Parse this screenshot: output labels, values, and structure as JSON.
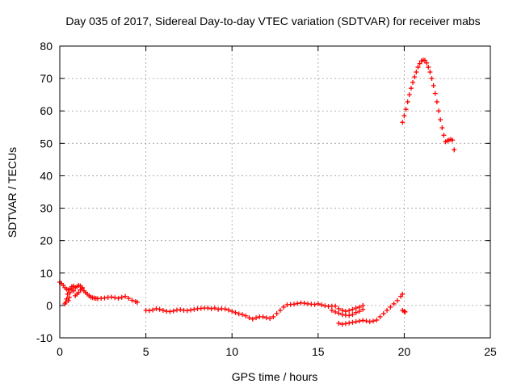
{
  "chart_data": {
    "type": "scatter",
    "title": "Day 035 of 2017, Sidereal Day-to-day VTEC variation (SDTVAR) for receiver mabs",
    "xlabel": "GPS time / hours",
    "ylabel": "SDTVAR / TECUs",
    "xlim": [
      0,
      25
    ],
    "ylim": [
      -10,
      80
    ],
    "xticks": [
      0,
      5,
      10,
      15,
      20,
      25
    ],
    "yticks": [
      -10,
      0,
      10,
      20,
      30,
      40,
      50,
      60,
      70,
      80
    ],
    "grid": true,
    "marker": "+",
    "color": "#ff0000",
    "series": [
      {
        "name": "mabs",
        "x": [
          0.0,
          0.1,
          0.2,
          0.3,
          0.4,
          0.5,
          0.6,
          0.7,
          0.8,
          0.9,
          1.0,
          1.1,
          1.2,
          1.3,
          1.4,
          1.5,
          1.6,
          1.7,
          1.8,
          1.9,
          2.0,
          2.1,
          2.2,
          2.4,
          2.6,
          2.8,
          3.0,
          3.2,
          3.4,
          3.6,
          3.8,
          4.0,
          4.2,
          4.4,
          4.5,
          0.3,
          0.35,
          0.4,
          0.45,
          0.5,
          0.55,
          0.6,
          0.7,
          0.8,
          0.9,
          1.0,
          1.1,
          1.2,
          1.3,
          5.0,
          5.2,
          5.4,
          5.6,
          5.8,
          6.0,
          6.2,
          6.4,
          6.6,
          6.8,
          7.0,
          7.2,
          7.4,
          7.6,
          7.8,
          8.0,
          8.2,
          8.4,
          8.6,
          8.8,
          9.0,
          9.2,
          9.4,
          9.6,
          9.8,
          10.0,
          10.2,
          10.4,
          10.6,
          10.8,
          11.0,
          11.2,
          11.4,
          11.6,
          11.8,
          12.0,
          12.2,
          12.4,
          12.6,
          12.8,
          13.0,
          13.2,
          13.4,
          13.6,
          13.8,
          14.0,
          14.2,
          14.4,
          14.6,
          14.8,
          15.0,
          15.2,
          15.4,
          15.6,
          15.8,
          16.0,
          16.2,
          16.4,
          16.6,
          16.8,
          17.0,
          17.2,
          17.4,
          17.6,
          15.8,
          16.0,
          16.2,
          16.4,
          16.6,
          16.8,
          17.0,
          17.2,
          17.4,
          17.6,
          16.2,
          16.4,
          16.6,
          16.8,
          17.0,
          17.2,
          17.4,
          17.6,
          17.8,
          18.0,
          18.2,
          18.4,
          18.6,
          18.8,
          19.0,
          19.2,
          19.4,
          19.6,
          19.8,
          19.9,
          19.9,
          20.0,
          20.05,
          19.9,
          20.0,
          20.1,
          20.2,
          20.3,
          20.4,
          20.5,
          20.6,
          20.7,
          20.8,
          20.9,
          21.0,
          21.1,
          21.2,
          21.3,
          21.4,
          21.5,
          21.6,
          21.7,
          21.8,
          21.9,
          22.0,
          22.1,
          22.2,
          22.3,
          22.4,
          22.5,
          22.6,
          22.7,
          22.8,
          22.9
        ],
        "y": [
          7.2,
          6.8,
          6.2,
          5.5,
          5.0,
          4.8,
          5.2,
          5.8,
          6.0,
          5.5,
          5.8,
          6.2,
          6.0,
          5.2,
          4.5,
          4.0,
          3.5,
          3.0,
          2.6,
          2.4,
          2.3,
          2.2,
          2.1,
          2.2,
          2.3,
          2.5,
          2.6,
          2.4,
          2.2,
          2.5,
          2.8,
          2.2,
          1.6,
          1.2,
          1.0,
          0.5,
          1.0,
          2.0,
          3.5,
          1.5,
          2.5,
          4.0,
          5.0,
          4.5,
          3.0,
          3.5,
          4.0,
          4.8,
          5.5,
          -1.5,
          -1.6,
          -1.4,
          -1.0,
          -1.2,
          -1.5,
          -1.8,
          -1.9,
          -1.7,
          -1.4,
          -1.3,
          -1.5,
          -1.6,
          -1.4,
          -1.2,
          -1.0,
          -0.9,
          -0.8,
          -0.8,
          -1.0,
          -0.8,
          -1.2,
          -1.0,
          -1.1,
          -1.4,
          -1.8,
          -2.2,
          -2.6,
          -2.8,
          -3.2,
          -3.8,
          -4.2,
          -3.8,
          -3.5,
          -3.5,
          -3.8,
          -4.0,
          -3.5,
          -2.5,
          -1.5,
          -0.5,
          0.2,
          0.3,
          0.4,
          0.6,
          0.8,
          0.7,
          0.5,
          0.4,
          0.3,
          0.5,
          0.2,
          -0.1,
          -0.3,
          -0.2,
          -0.2,
          -1.0,
          -1.5,
          -1.8,
          -1.6,
          -1.2,
          -0.8,
          -0.5,
          0.0,
          -1.5,
          -2.0,
          -2.4,
          -2.8,
          -3.0,
          -3.1,
          -2.8,
          -2.2,
          -1.8,
          -1.2,
          -5.5,
          -5.8,
          -5.6,
          -5.4,
          -5.2,
          -5.0,
          -4.8,
          -4.6,
          -4.8,
          -5.0,
          -4.8,
          -4.5,
          -3.5,
          -2.5,
          -1.5,
          -0.5,
          0.5,
          1.5,
          2.8,
          3.5,
          -1.5,
          -1.8,
          -2.0,
          56.5,
          58.5,
          60.5,
          62.8,
          65.0,
          67.0,
          68.8,
          70.5,
          72.0,
          73.5,
          74.6,
          75.4,
          75.7,
          75.6,
          74.8,
          73.5,
          72.0,
          70.0,
          67.8,
          65.4,
          62.8,
          60.0,
          57.3,
          54.8,
          52.5,
          50.5,
          50.8,
          51.0,
          51.2,
          51.0,
          48.0
        ]
      }
    ]
  }
}
